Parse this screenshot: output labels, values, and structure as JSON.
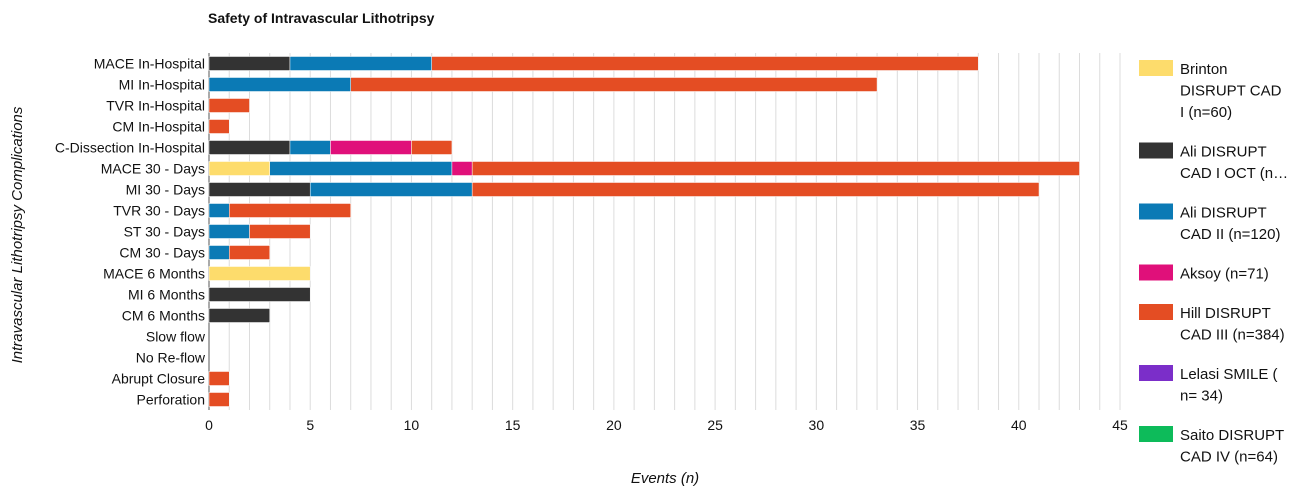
{
  "chart_data": {
    "type": "bar",
    "orientation": "horizontal",
    "stacked": true,
    "title": "Safety of Intravascular Lithotripsy",
    "xlabel": "Events (n)",
    "ylabel": "Intravascular Lithotripsy Complications",
    "xlim": [
      0,
      45
    ],
    "xticks": [
      0,
      5,
      10,
      15,
      20,
      25,
      30,
      35,
      40,
      45
    ],
    "grid": true,
    "legend_position": "right",
    "categories": [
      "MACE In-Hospital",
      "MI In-Hospital",
      "TVR In-Hospital",
      "CM In-Hospital",
      "C-Dissection In-Hospital",
      "MACE 30 - Days",
      "MI 30 - Days",
      "TVR 30 - Days",
      "ST 30 - Days",
      "CM 30 - Days",
      "MACE 6 Months",
      "MI 6 Months",
      "CM 6 Months",
      "Slow flow",
      "No Re-flow",
      "Abrupt Closure",
      "Perforation"
    ],
    "series": [
      {
        "name": "Brinton DISRUPT CAD I (n=60)",
        "legend_lines": [
          "Brinton",
          "DISRUPT CAD",
          "I (n=60)"
        ],
        "color": "#fddc6c",
        "values": [
          0,
          0,
          0,
          0,
          0,
          3,
          0,
          0,
          0,
          0,
          5,
          0,
          0,
          0,
          0,
          0,
          0
        ]
      },
      {
        "name": "Ali DISRUPT CAD I OCT (n…",
        "legend_lines": [
          "Ali DISRUPT",
          "CAD I OCT (n…"
        ],
        "color": "#333333",
        "values": [
          4,
          0,
          0,
          0,
          4,
          0,
          5,
          0,
          0,
          0,
          0,
          5,
          3,
          0,
          0,
          0,
          0
        ]
      },
      {
        "name": "Ali DISRUPT CAD II (n=120)",
        "legend_lines": [
          "Ali DISRUPT",
          "CAD II (n=120)"
        ],
        "color": "#0b7ab5",
        "values": [
          7,
          7,
          0,
          0,
          2,
          9,
          8,
          1,
          2,
          1,
          0,
          0,
          0,
          0,
          0,
          0,
          0
        ]
      },
      {
        "name": "Aksoy (n=71)",
        "legend_lines": [
          "Aksoy (n=71)"
        ],
        "color": "#e0107a",
        "values": [
          0,
          0,
          0,
          0,
          4,
          1,
          0,
          0,
          0,
          0,
          0,
          0,
          0,
          0,
          0,
          0,
          0
        ]
      },
      {
        "name": "Hill DISRUPT CAD III (n=384)",
        "legend_lines": [
          "Hill DISRUPT",
          "CAD III (n=384)"
        ],
        "color": "#e44d23",
        "values": [
          27,
          26,
          2,
          1,
          2,
          30,
          28,
          6,
          3,
          2,
          0,
          0,
          0,
          0,
          0,
          1,
          1
        ]
      },
      {
        "name": "Lelasi SMILE ( n= 34)",
        "legend_lines": [
          "Lelasi SMILE (",
          "n= 34)"
        ],
        "color": "#7b2ec9",
        "values": [
          0,
          0,
          0,
          0,
          0,
          0,
          0,
          0,
          0,
          0,
          0,
          0,
          0,
          0,
          0,
          0,
          0
        ]
      },
      {
        "name": "Saito DISRUPT CAD IV (n=64)",
        "legend_lines": [
          "Saito DISRUPT",
          "CAD IV (n=64)"
        ],
        "color": "#0dbb5a",
        "values": [
          0,
          0,
          0,
          0,
          0,
          0,
          0,
          0,
          0,
          0,
          0,
          0,
          0,
          0,
          0,
          0,
          0
        ]
      }
    ]
  }
}
